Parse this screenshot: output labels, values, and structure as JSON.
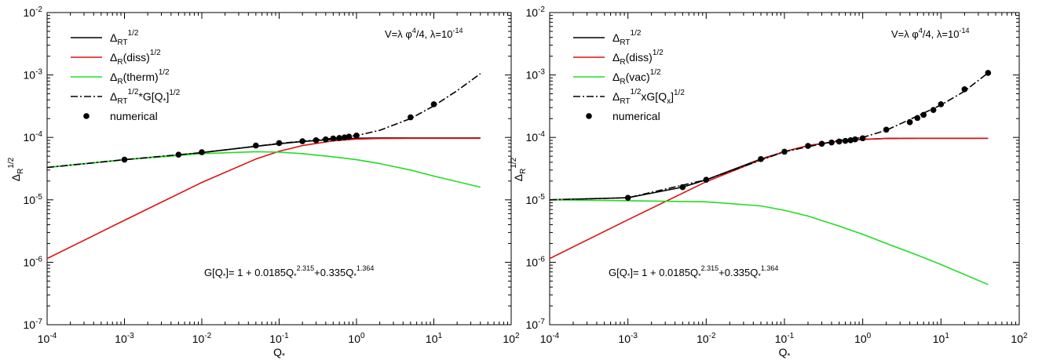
{
  "chart_data": [
    {
      "type": "line",
      "xscale": "log",
      "yscale": "log",
      "xlim": [
        0.0001,
        100
      ],
      "ylim": [
        1e-07,
        0.01
      ],
      "xlabel": "Q*",
      "ylabel": "ΔR^1/2",
      "grid": false,
      "legend_position": "top-left",
      "x_ticks": [
        {
          "value": 0.0001,
          "base": "10",
          "exp": "-4"
        },
        {
          "value": 0.001,
          "base": "10",
          "exp": "-3"
        },
        {
          "value": 0.01,
          "base": "10",
          "exp": "-2"
        },
        {
          "value": 0.1,
          "base": "10",
          "exp": "-1"
        },
        {
          "value": 1,
          "base": "10",
          "exp": "0"
        },
        {
          "value": 10,
          "base": "10",
          "exp": "1"
        },
        {
          "value": 100,
          "base": "10",
          "exp": "2"
        }
      ],
      "y_ticks": [
        {
          "value": 1e-07,
          "base": "10",
          "exp": "-7"
        },
        {
          "value": 1e-06,
          "base": "10",
          "exp": "-6"
        },
        {
          "value": 1e-05,
          "base": "10",
          "exp": "-5"
        },
        {
          "value": 0.0001,
          "base": "10",
          "exp": "-4"
        },
        {
          "value": 0.001,
          "base": "10",
          "exp": "-3"
        },
        {
          "value": 0.01,
          "base": "10",
          "exp": "-2"
        }
      ],
      "annotations": {
        "potential": {
          "pre": "V=λ φ",
          "sup1": "4",
          "mid": "/4, λ=10",
          "sup2": "-14"
        },
        "formula": {
          "pre": "G[Q",
          "sub0": "*",
          "a": "]= 1 + 0.0185Q",
          "sub1": "*",
          "sup1": "2.315",
          "b": "+0.335Q",
          "sub2": "*",
          "sup2": "1.364"
        }
      },
      "series": [
        {
          "name": "ΔRT^1/2",
          "legend": {
            "base": "Δ",
            "sub": "RT",
            "rest": "",
            "sup": "1/2",
            "tail": ""
          },
          "color": "#000000",
          "style": "solid",
          "x": [
            0.0001,
            0.001,
            0.005,
            0.01,
            0.05,
            0.1,
            0.2,
            0.5,
            1,
            2,
            5,
            10,
            40
          ],
          "y": [
            3.3e-05,
            4.4e-05,
            5.2e-05,
            5.7e-05,
            7.2e-05,
            7.9e-05,
            8.6e-05,
            9.3e-05,
            9.7e-05,
            9.8e-05,
            9.8e-05,
            9.8e-05,
            9.8e-05
          ]
        },
        {
          "name": "ΔR(diss)^1/2",
          "legend": {
            "base": "Δ",
            "sub": "R",
            "rest": "(diss)",
            "sup": "1/2",
            "tail": ""
          },
          "color": "#dd1111",
          "style": "solid",
          "x": [
            0.0001,
            0.001,
            0.01,
            0.05,
            0.1,
            0.2,
            0.5,
            1,
            2,
            5,
            40
          ],
          "y": [
            1.15e-06,
            4.7e-06,
            1.9e-05,
            4.5e-05,
            6e-05,
            7.4e-05,
            8.8e-05,
            9.4e-05,
            9.6e-05,
            9.7e-05,
            9.7e-05
          ]
        },
        {
          "name": "ΔR(therm)^1/2",
          "legend": {
            "base": "Δ",
            "sub": "R",
            "rest": "(therm)",
            "sup": "1/2",
            "tail": ""
          },
          "color": "#22dd22",
          "style": "solid",
          "x": [
            0.0001,
            0.001,
            0.01,
            0.05,
            0.1,
            0.2,
            0.5,
            1,
            2,
            5,
            10,
            40
          ],
          "y": [
            3.3e-05,
            4.4e-05,
            5.5e-05,
            5.9e-05,
            5.8e-05,
            5.5e-05,
            4.9e-05,
            4.4e-05,
            3.8e-05,
            3e-05,
            2.4e-05,
            1.6e-05
          ]
        },
        {
          "name": "ΔRT^1/2*G[Q*]^1/2",
          "legend": {
            "base": "Δ",
            "sub": "RT",
            "rest": "",
            "sup": "1/2",
            "tail": "*G[Q*]^1/2"
          },
          "color": "#000000",
          "style": "dashdot",
          "x": [
            0.0001,
            0.001,
            0.01,
            0.1,
            0.5,
            1,
            2,
            5,
            10,
            20,
            40
          ],
          "y": [
            3.3e-05,
            4.4e-05,
            5.7e-05,
            8e-05,
            9.7e-05,
            0.000107,
            0.00013,
            0.0002,
            0.00032,
            0.00056,
            0.00105
          ]
        },
        {
          "name": "numerical",
          "legend": {
            "base": "numerical",
            "sub": "",
            "rest": "",
            "sup": "",
            "tail": ""
          },
          "color": "#000000",
          "style": "markers",
          "x": [
            0.001,
            0.005,
            0.01,
            0.05,
            0.1,
            0.2,
            0.3,
            0.4,
            0.5,
            0.6,
            0.7,
            0.8,
            1,
            5,
            10
          ],
          "y": [
            4.4e-05,
            5.3e-05,
            5.8e-05,
            7.4e-05,
            8.1e-05,
            8.7e-05,
            9e-05,
            9.3e-05,
            9.6e-05,
            9.8e-05,
            0.0001,
            0.000103,
            0.000107,
            0.00021,
            0.00034
          ]
        }
      ]
    },
    {
      "type": "line",
      "xscale": "log",
      "yscale": "log",
      "xlim": [
        0.0001,
        100
      ],
      "ylim": [
        1e-07,
        0.01
      ],
      "xlabel": "Q*",
      "ylabel": "ΔR^1/2",
      "grid": false,
      "legend_position": "top-left",
      "x_ticks": [
        {
          "value": 0.0001,
          "base": "10",
          "exp": "-4"
        },
        {
          "value": 0.001,
          "base": "10",
          "exp": "-3"
        },
        {
          "value": 0.01,
          "base": "10",
          "exp": "-2"
        },
        {
          "value": 0.1,
          "base": "10",
          "exp": "-1"
        },
        {
          "value": 1,
          "base": "10",
          "exp": "0"
        },
        {
          "value": 10,
          "base": "10",
          "exp": "1"
        },
        {
          "value": 100,
          "base": "10",
          "exp": "2"
        }
      ],
      "y_ticks": [
        {
          "value": 1e-07,
          "base": "10",
          "exp": "-7"
        },
        {
          "value": 1e-06,
          "base": "10",
          "exp": "-6"
        },
        {
          "value": 1e-05,
          "base": "10",
          "exp": "-5"
        },
        {
          "value": 0.0001,
          "base": "10",
          "exp": "-4"
        },
        {
          "value": 0.001,
          "base": "10",
          "exp": "-3"
        },
        {
          "value": 0.01,
          "base": "10",
          "exp": "-2"
        }
      ],
      "annotations": {
        "potential": {
          "pre": "V=λ φ",
          "sup1": "4",
          "mid": "/4, λ=10",
          "sup2": "-14"
        },
        "formula": {
          "pre": "G[Q",
          "sub0": "*",
          "a": "]= 1 + 0.0185Q",
          "sub1": "*",
          "sup1": "2.315",
          "b": "+0.335Q",
          "sub2": "*",
          "sup2": "1.364"
        }
      },
      "series": [
        {
          "name": "ΔRT^1/2",
          "legend": {
            "base": "Δ",
            "sub": "RT",
            "rest": "",
            "sup": "1/2",
            "tail": ""
          },
          "color": "#000000",
          "style": "solid",
          "x": [
            0.0001,
            0.001,
            0.005,
            0.01,
            0.05,
            0.1,
            0.2,
            0.5,
            1,
            2,
            5,
            40
          ],
          "y": [
            1e-05,
            1.08e-05,
            1.6e-05,
            2.1e-05,
            4.5e-05,
            5.9e-05,
            7.4e-05,
            8.7e-05,
            9.3e-05,
            9.6e-05,
            9.7e-05,
            9.7e-05
          ]
        },
        {
          "name": "ΔR(diss)^1/2",
          "legend": {
            "base": "Δ",
            "sub": "R",
            "rest": "(diss)",
            "sup": "1/2",
            "tail": ""
          },
          "color": "#dd1111",
          "style": "solid",
          "x": [
            0.0001,
            0.001,
            0.01,
            0.05,
            0.1,
            0.2,
            0.5,
            1,
            2,
            5,
            40
          ],
          "y": [
            1.15e-06,
            4.8e-06,
            1.95e-05,
            4.4e-05,
            5.9e-05,
            7.4e-05,
            8.7e-05,
            9.3e-05,
            9.6e-05,
            9.7e-05,
            9.7e-05
          ]
        },
        {
          "name": "ΔR(vac)^1/2",
          "legend": {
            "base": "Δ",
            "sub": "R",
            "rest": "(vac)",
            "sup": "1/2",
            "tail": ""
          },
          "color": "#22dd22",
          "style": "solid",
          "x": [
            0.0001,
            0.001,
            0.01,
            0.05,
            0.1,
            0.2,
            0.5,
            1,
            2,
            5,
            10,
            40
          ],
          "y": [
            1e-05,
            9.7e-06,
            9.3e-06,
            8e-06,
            6.8e-06,
            5.5e-06,
            3.8e-06,
            2.8e-06,
            2e-06,
            1.3e-06,
            9.2e-07,
            4.4e-07
          ]
        },
        {
          "name": "ΔRT^1/2xG[Qx]^1/2",
          "legend": {
            "base": "Δ",
            "sub": "RT",
            "rest": "",
            "sup": "1/2",
            "tail": "xG[Qx]^1/2"
          },
          "color": "#000000",
          "style": "dashdot",
          "x": [
            0.0001,
            0.001,
            0.01,
            0.1,
            0.5,
            1,
            2,
            5,
            10,
            20,
            40
          ],
          "y": [
            1e-05,
            1.08e-05,
            2.1e-05,
            5.9e-05,
            9e-05,
            0.0001,
            0.00013,
            0.00022,
            0.00033,
            0.00055,
            0.00108
          ]
        },
        {
          "name": "numerical",
          "legend": {
            "base": "numerical",
            "sub": "",
            "rest": "",
            "sup": "",
            "tail": ""
          },
          "color": "#000000",
          "style": "markers",
          "x": [
            0.001,
            0.005,
            0.01,
            0.05,
            0.1,
            0.2,
            0.3,
            0.4,
            0.5,
            0.6,
            0.7,
            0.8,
            1,
            2,
            4,
            5,
            6,
            8,
            10,
            20,
            40
          ],
          "y": [
            1.08e-05,
            1.6e-05,
            2.1e-05,
            4.5e-05,
            5.9e-05,
            7.3e-05,
            7.9e-05,
            8.3e-05,
            8.6e-05,
            8.8e-05,
            9e-05,
            9.3e-05,
            9.7e-05,
            0.000133,
            0.000175,
            0.000205,
            0.00023,
            0.000275,
            0.00034,
            0.00059,
            0.00108
          ]
        }
      ]
    }
  ]
}
